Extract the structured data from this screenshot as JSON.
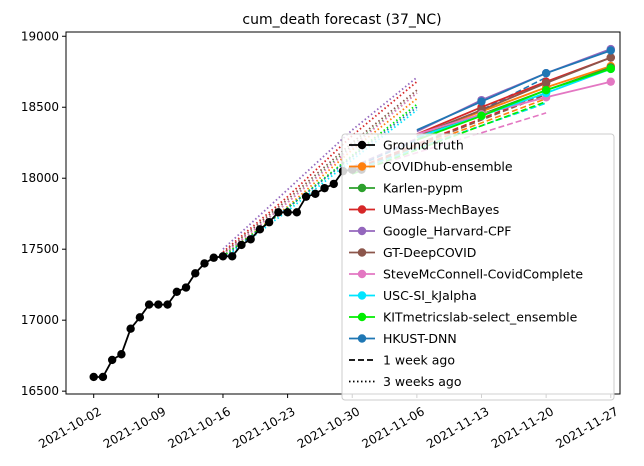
{
  "chart_data": {
    "type": "line",
    "title": "cum_death forecast (37_NC)",
    "xlabel": "",
    "ylabel": "",
    "xlim": [
      "2021-09-29",
      "2021-11-28"
    ],
    "ylim": [
      16480,
      19030
    ],
    "grid": false,
    "legend_position": "lower-right",
    "x_ticks": [
      "2021-10-02",
      "2021-10-09",
      "2021-10-16",
      "2021-10-23",
      "2021-10-30",
      "2021-11-06",
      "2021-11-13",
      "2021-11-20",
      "2021-11-27"
    ],
    "y_ticks": [
      16500,
      17000,
      17500,
      18000,
      18500,
      19000
    ],
    "ground_truth": {
      "name": "Ground truth",
      "color": "#000000",
      "points": [
        [
          "2021-10-02",
          16600
        ],
        [
          "2021-10-03",
          16600
        ],
        [
          "2021-10-04",
          16720
        ],
        [
          "2021-10-05",
          16760
        ],
        [
          "2021-10-06",
          16940
        ],
        [
          "2021-10-07",
          17020
        ],
        [
          "2021-10-08",
          17110
        ],
        [
          "2021-10-09",
          17110
        ],
        [
          "2021-10-10",
          17110
        ],
        [
          "2021-10-11",
          17200
        ],
        [
          "2021-10-12",
          17230
        ],
        [
          "2021-10-13",
          17330
        ],
        [
          "2021-10-14",
          17400
        ],
        [
          "2021-10-15",
          17440
        ],
        [
          "2021-10-16",
          17450
        ],
        [
          "2021-10-17",
          17450
        ],
        [
          "2021-10-18",
          17530
        ],
        [
          "2021-10-19",
          17570
        ],
        [
          "2021-10-20",
          17640
        ],
        [
          "2021-10-21",
          17690
        ],
        [
          "2021-10-22",
          17760
        ],
        [
          "2021-10-23",
          17760
        ],
        [
          "2021-10-24",
          17760
        ],
        [
          "2021-10-25",
          17870
        ],
        [
          "2021-10-26",
          17890
        ],
        [
          "2021-10-27",
          17930
        ],
        [
          "2021-10-28",
          17960
        ],
        [
          "2021-10-29",
          18050
        ],
        [
          "2021-10-30",
          18060
        ],
        [
          "2021-10-31",
          18060
        ]
      ]
    },
    "series": [
      {
        "name": "COVIDhub-ensemble",
        "color": "#ff7f0e",
        "current": [
          [
            "2021-11-06",
            18300
          ],
          [
            "2021-11-13",
            18470
          ],
          [
            "2021-11-20",
            18640
          ],
          [
            "2021-11-27",
            18790
          ]
        ],
        "week1": [
          [
            "2021-10-30",
            18040
          ],
          [
            "2021-11-06",
            18220
          ],
          [
            "2021-11-13",
            18390
          ],
          [
            "2021-11-20",
            18560
          ]
        ],
        "week3": [
          [
            "2021-10-16",
            17450
          ],
          [
            "2021-10-23",
            17800
          ],
          [
            "2021-10-30",
            18200
          ],
          [
            "2021-11-06",
            18560
          ]
        ]
      },
      {
        "name": "Karlen-pypm",
        "color": "#2ca02c",
        "current": [
          [
            "2021-11-06",
            18290
          ],
          [
            "2021-11-13",
            18450
          ],
          [
            "2021-11-20",
            18620
          ],
          [
            "2021-11-27",
            18780
          ]
        ],
        "week1": [
          [
            "2021-10-30",
            18050
          ],
          [
            "2021-11-06",
            18210
          ],
          [
            "2021-11-13",
            18370
          ],
          [
            "2021-11-20",
            18530
          ]
        ],
        "week3": [
          [
            "2021-10-16",
            17460
          ],
          [
            "2021-10-23",
            17830
          ],
          [
            "2021-10-30",
            18230
          ],
          [
            "2021-11-06",
            18600
          ]
        ]
      },
      {
        "name": "UMass-MechBayes",
        "color": "#d62728",
        "current": [
          [
            "2021-11-06",
            18310
          ],
          [
            "2021-11-13",
            18500
          ],
          [
            "2021-11-20",
            18680
          ],
          [
            "2021-11-27",
            18850
          ]
        ],
        "week1": [
          [
            "2021-10-30",
            18060
          ],
          [
            "2021-11-06",
            18240
          ],
          [
            "2021-11-13",
            18420
          ],
          [
            "2021-11-20",
            18600
          ]
        ],
        "week3": [
          [
            "2021-10-16",
            17480
          ],
          [
            "2021-10-23",
            17870
          ],
          [
            "2021-10-30",
            18300
          ],
          [
            "2021-11-06",
            18680
          ]
        ]
      },
      {
        "name": "Google_Harvard-CPF",
        "color": "#9467bd",
        "current": [
          [
            "2021-11-06",
            18330
          ],
          [
            "2021-11-13",
            18550
          ],
          [
            "2021-11-20",
            18740
          ],
          [
            "2021-11-27",
            18910
          ]
        ],
        "week1": [
          [
            "2021-10-30",
            18080
          ],
          [
            "2021-11-06",
            18280
          ],
          [
            "2021-11-13",
            18480
          ],
          [
            "2021-11-20",
            18680
          ]
        ],
        "week3": [
          [
            "2021-10-16",
            17500
          ],
          [
            "2021-10-23",
            17920
          ],
          [
            "2021-10-30",
            18340
          ],
          [
            "2021-11-06",
            18710
          ]
        ]
      },
      {
        "name": "GT-DeepCOVID",
        "color": "#8c564b",
        "current": [
          [
            "2021-11-06",
            18300
          ],
          [
            "2021-11-13",
            18480
          ],
          [
            "2021-11-20",
            18670
          ],
          [
            "2021-11-27",
            18850
          ]
        ],
        "week1": [
          [
            "2021-10-30",
            18050
          ],
          [
            "2021-11-06",
            18230
          ],
          [
            "2021-11-13",
            18410
          ],
          [
            "2021-11-20",
            18590
          ]
        ],
        "week3": [
          [
            "2021-10-16",
            17470
          ],
          [
            "2021-10-23",
            17850
          ],
          [
            "2021-10-30",
            18250
          ],
          [
            "2021-11-06",
            18620
          ]
        ]
      },
      {
        "name": "SteveMcConnell-CovidComplete",
        "color": "#e377c2",
        "current": [
          [
            "2021-11-06",
            18310
          ],
          [
            "2021-11-13",
            18450
          ],
          [
            "2021-11-20",
            18570
          ],
          [
            "2021-11-27",
            18680
          ]
        ],
        "week1": [
          [
            "2021-10-30",
            18040
          ],
          [
            "2021-11-06",
            18180
          ],
          [
            "2021-11-13",
            18320
          ],
          [
            "2021-11-20",
            18460
          ]
        ],
        "week3": [
          [
            "2021-10-16",
            17460
          ],
          [
            "2021-10-23",
            17830
          ],
          [
            "2021-10-30",
            18220
          ],
          [
            "2021-11-06",
            18600
          ]
        ]
      },
      {
        "name": "USC-SI_kJalpha",
        "color": "#00e5ff",
        "current": [
          [
            "2021-11-06",
            18290
          ],
          [
            "2021-11-13",
            18440
          ],
          [
            "2021-11-20",
            18600
          ],
          [
            "2021-11-27",
            18770
          ]
        ],
        "week1": [
          [
            "2021-10-30",
            18050
          ],
          [
            "2021-11-06",
            18210
          ],
          [
            "2021-11-13",
            18370
          ],
          [
            "2021-11-20",
            18530
          ]
        ],
        "week3": [
          [
            "2021-10-16",
            17430
          ],
          [
            "2021-10-23",
            17770
          ],
          [
            "2021-10-30",
            18130
          ],
          [
            "2021-11-06",
            18480
          ]
        ]
      },
      {
        "name": "KITmetricslab-select_ensemble",
        "color": "#00ee00",
        "current": [
          [
            "2021-11-06",
            18270
          ],
          [
            "2021-11-13",
            18440
          ],
          [
            "2021-11-20",
            18620
          ],
          [
            "2021-11-27",
            18770
          ]
        ],
        "week1": [
          [
            "2021-10-30",
            18030
          ],
          [
            "2021-11-06",
            18200
          ],
          [
            "2021-11-13",
            18370
          ],
          [
            "2021-11-20",
            18540
          ]
        ],
        "week3": [
          [
            "2021-10-16",
            17450
          ],
          [
            "2021-10-23",
            17790
          ],
          [
            "2021-10-30",
            18160
          ],
          [
            "2021-11-06",
            18520
          ]
        ]
      },
      {
        "name": "HKUST-DNN",
        "color": "#1f77b4",
        "current": [
          [
            "2021-11-06",
            18340
          ],
          [
            "2021-11-13",
            18540
          ],
          [
            "2021-11-20",
            18740
          ],
          [
            "2021-11-27",
            18900
          ]
        ],
        "week1": [
          [
            "2021-10-30",
            18070
          ],
          [
            "2021-11-06",
            18270
          ],
          [
            "2021-11-13",
            18480
          ],
          [
            "2021-11-20",
            18710
          ]
        ],
        "week3": [
          [
            "2021-10-16",
            17440
          ],
          [
            "2021-10-23",
            17790
          ],
          [
            "2021-10-30",
            18150
          ],
          [
            "2021-11-06",
            18500
          ]
        ]
      }
    ],
    "legend_extra": [
      {
        "label": "1 week ago",
        "style": "dashed"
      },
      {
        "label": "3 weeks ago",
        "style": "dotted"
      }
    ]
  }
}
